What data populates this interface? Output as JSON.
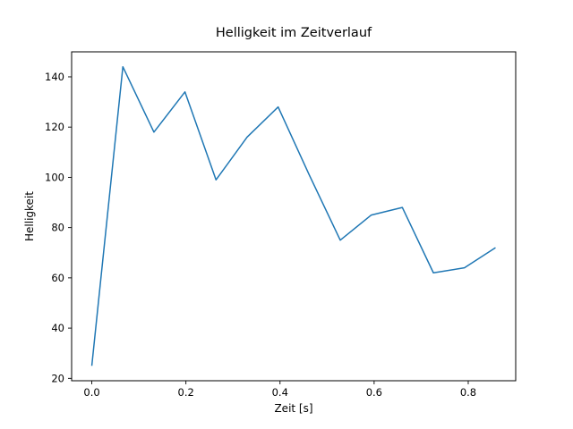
{
  "chart_data": {
    "type": "line",
    "title": "Helligkeit im Zeitverlauf",
    "xlabel": "Zeit [s]",
    "ylabel": "Helligkeit",
    "x": [
      0.0,
      0.066,
      0.132,
      0.198,
      0.264,
      0.33,
      0.396,
      0.462,
      0.528,
      0.594,
      0.66,
      0.726,
      0.792,
      0.858
    ],
    "values": [
      25,
      144,
      118,
      134,
      99,
      116,
      128,
      101,
      75,
      85,
      88,
      62,
      64,
      72
    ],
    "xticks": [
      0.0,
      0.2,
      0.4,
      0.6,
      0.8
    ],
    "yticks": [
      20,
      40,
      60,
      80,
      100,
      120,
      140
    ],
    "xlim": [
      -0.0429,
      0.9009
    ],
    "ylim": [
      19.05,
      149.95
    ],
    "line_color": "#1f77b4",
    "spine_color": "#000000",
    "text_color": "#000000",
    "background": "#ffffff",
    "grid": false,
    "legend": "none"
  }
}
